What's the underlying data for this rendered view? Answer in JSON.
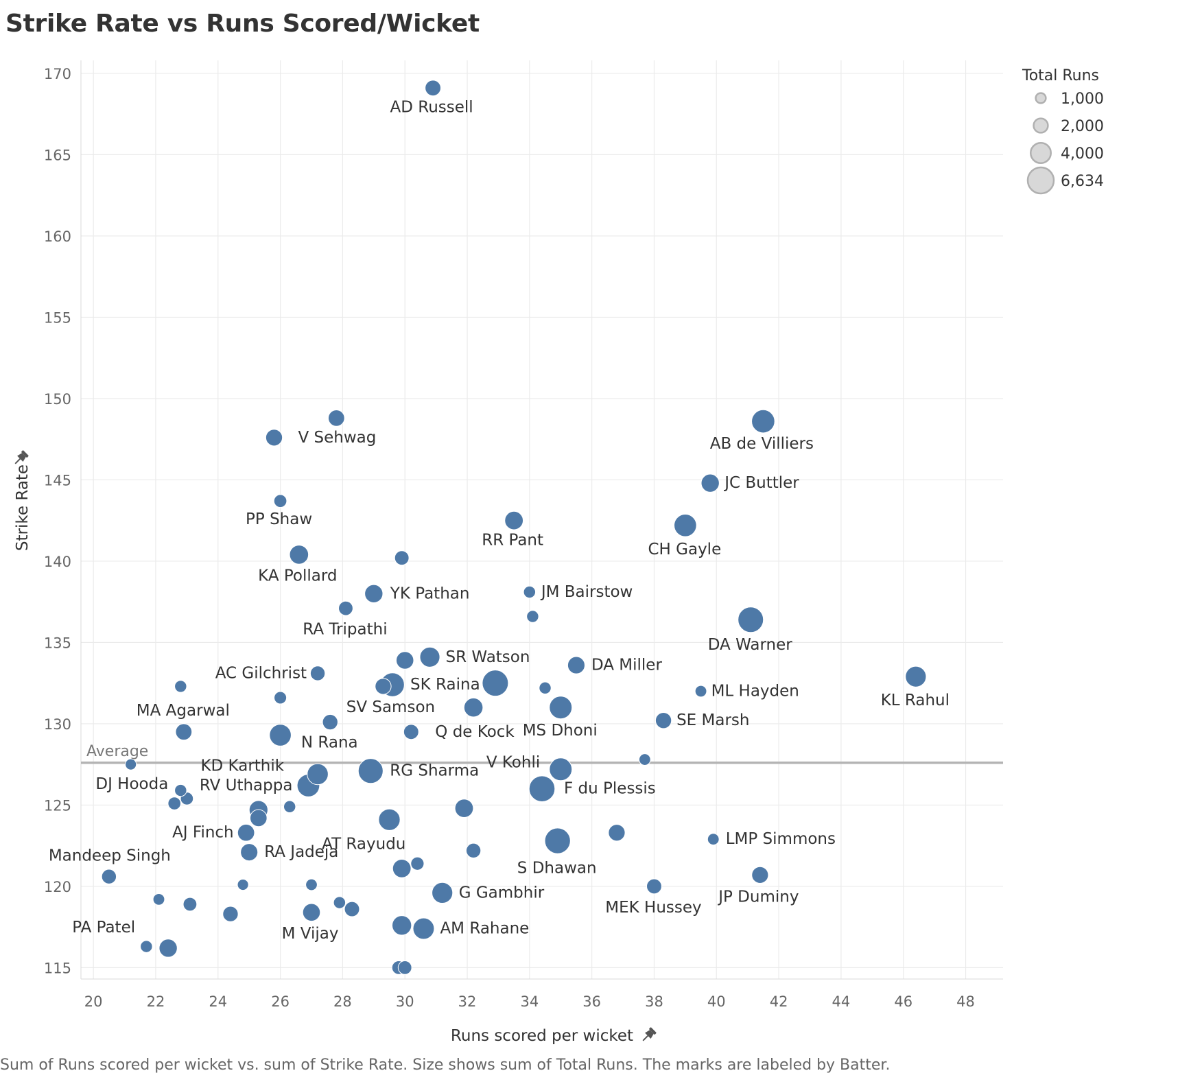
{
  "title": "Strike Rate vs Runs Scored/Wicket",
  "caption": "Sum of Runs scored per wicket vs. sum of Strike Rate.  Size shows sum of Total Runs.  The marks are labeled by Batter.",
  "colors": {
    "point": "#4e79a7",
    "grid": "#ebebeb",
    "reference": "#b4b4b4",
    "legend_fill": "#d8d8d8",
    "legend_stroke": "#b0b0b0"
  },
  "icons": {
    "pin": "pin-icon"
  },
  "chart_data": {
    "type": "scatter",
    "title": "Strike Rate vs Runs Scored/Wicket",
    "xlabel": "Runs scored per wicket",
    "ylabel": "Strike Rate",
    "xlim": [
      19.6,
      49.2
    ],
    "ylim": [
      114.3,
      170.8
    ],
    "x_ticks": [
      20,
      22,
      24,
      26,
      28,
      30,
      32,
      34,
      36,
      38,
      40,
      42,
      44,
      46,
      48
    ],
    "y_ticks": [
      115,
      120,
      125,
      130,
      135,
      140,
      145,
      150,
      155,
      160,
      165,
      170
    ],
    "grid": true,
    "legend_position": "top-right",
    "size_legend": {
      "title": "Total Runs",
      "entries": [
        {
          "label": "1,000",
          "value": 1000
        },
        {
          "label": "2,000",
          "value": 2000
        },
        {
          "label": "4,000",
          "value": 4000
        },
        {
          "label": "6,634",
          "value": 6634
        }
      ]
    },
    "reference_line": {
      "label": "Average",
      "y": 127.6
    },
    "points": [
      {
        "name": "AD Russell",
        "x": 30.9,
        "y": 169.1,
        "size": 2400
      },
      {
        "name": "",
        "x": 27.8,
        "y": 148.8,
        "size": 2600
      },
      {
        "name": "V Sehwag",
        "x": 25.8,
        "y": 147.6,
        "size": 2700
      },
      {
        "name": "AB de Villiers",
        "x": 41.5,
        "y": 148.6,
        "size": 5200
      },
      {
        "name": "JC Buttler",
        "x": 39.8,
        "y": 144.8,
        "size": 3200
      },
      {
        "name": "PP Shaw",
        "x": 26.0,
        "y": 143.7,
        "size": 1600
      },
      {
        "name": "RR Pant",
        "x": 33.5,
        "y": 142.5,
        "size": 3300
      },
      {
        "name": "CH Gayle",
        "x": 39.0,
        "y": 142.2,
        "size": 4900
      },
      {
        "name": "KA Pollard",
        "x": 26.6,
        "y": 140.4,
        "size": 3500
      },
      {
        "name": "",
        "x": 29.9,
        "y": 140.2,
        "size": 2000
      },
      {
        "name": "YK Pathan",
        "x": 29.0,
        "y": 138.0,
        "size": 3200
      },
      {
        "name": "JM Bairstow",
        "x": 34.0,
        "y": 138.1,
        "size": 1400
      },
      {
        "name": "RA Tripathi",
        "x": 28.1,
        "y": 137.1,
        "size": 2000
      },
      {
        "name": "",
        "x": 34.1,
        "y": 136.6,
        "size": 1400
      },
      {
        "name": "DA Warner",
        "x": 41.1,
        "y": 136.4,
        "size": 6300
      },
      {
        "name": "",
        "x": 30.0,
        "y": 133.9,
        "size": 3000
      },
      {
        "name": "SR Watson",
        "x": 30.8,
        "y": 134.1,
        "size": 3900
      },
      {
        "name": "DA Miller",
        "x": 35.5,
        "y": 133.6,
        "size": 2900
      },
      {
        "name": "AC Gilchrist",
        "x": 27.2,
        "y": 133.1,
        "size": 2100
      },
      {
        "name": "KL Rahul",
        "x": 46.4,
        "y": 132.9,
        "size": 4200
      },
      {
        "name": "SK Raina",
        "x": 29.6,
        "y": 132.4,
        "size": 5500
      },
      {
        "name": "",
        "x": 29.3,
        "y": 132.3,
        "size": 2500
      },
      {
        "name": "",
        "x": 32.9,
        "y": 132.5,
        "size": 6634
      },
      {
        "name": "",
        "x": 22.8,
        "y": 132.3,
        "size": 1400
      },
      {
        "name": "",
        "x": 34.5,
        "y": 132.2,
        "size": 1400
      },
      {
        "name": "ML Hayden",
        "x": 39.5,
        "y": 132.0,
        "size": 1300
      },
      {
        "name": "",
        "x": 26.0,
        "y": 131.6,
        "size": 1500
      },
      {
        "name": "SV Samson",
        "x": 32.2,
        "y": 131.0,
        "size": 3500
      },
      {
        "name": "MS Dhoni",
        "x": 35.0,
        "y": 131.0,
        "size": 5000
      },
      {
        "name": "SE Marsh",
        "x": 38.3,
        "y": 130.2,
        "size": 2500
      },
      {
        "name": "MA Agarwal",
        "x": 22.9,
        "y": 129.5,
        "size": 2600
      },
      {
        "name": "N Rana",
        "x": 27.6,
        "y": 130.1,
        "size": 2300
      },
      {
        "name": "",
        "x": 26.0,
        "y": 129.3,
        "size": 4600
      },
      {
        "name": "Q de Kock",
        "x": 30.2,
        "y": 129.5,
        "size": 2200
      },
      {
        "name": "",
        "x": 37.7,
        "y": 127.8,
        "size": 1300
      },
      {
        "name": "",
        "x": 21.2,
        "y": 127.5,
        "size": 1200
      },
      {
        "name": "V Kohli",
        "x": 35.0,
        "y": 127.2,
        "size": 5000
      },
      {
        "name": "RG Sharma",
        "x": 28.9,
        "y": 127.1,
        "size": 6000
      },
      {
        "name": "KD Karthik",
        "x": 27.2,
        "y": 126.9,
        "size": 4300
      },
      {
        "name": "RV Uthappa",
        "x": 26.9,
        "y": 126.2,
        "size": 4950
      },
      {
        "name": "DJ Hooda",
        "x": 22.8,
        "y": 125.9,
        "size": 1400
      },
      {
        "name": "F du Plessis",
        "x": 34.4,
        "y": 126.0,
        "size": 6500
      },
      {
        "name": "",
        "x": 23.0,
        "y": 125.4,
        "size": 1600
      },
      {
        "name": "",
        "x": 22.6,
        "y": 125.1,
        "size": 1600
      },
      {
        "name": "",
        "x": 25.3,
        "y": 124.7,
        "size": 3400
      },
      {
        "name": "",
        "x": 26.3,
        "y": 124.9,
        "size": 1400
      },
      {
        "name": "",
        "x": 31.9,
        "y": 124.8,
        "size": 3300
      },
      {
        "name": "",
        "x": 25.3,
        "y": 124.2,
        "size": 2800
      },
      {
        "name": "",
        "x": 29.5,
        "y": 124.1,
        "size": 4500
      },
      {
        "name": "AJ Finch",
        "x": 24.9,
        "y": 123.3,
        "size": 2800
      },
      {
        "name": "",
        "x": 36.8,
        "y": 123.3,
        "size": 2700
      },
      {
        "name": "S Dhawan",
        "x": 34.9,
        "y": 122.8,
        "size": 6400
      },
      {
        "name": "LMP Simmons",
        "x": 39.9,
        "y": 122.9,
        "size": 1300
      },
      {
        "name": "RA Jadeja",
        "x": 25.0,
        "y": 122.1,
        "size": 2900
      },
      {
        "name": "",
        "x": 32.2,
        "y": 122.2,
        "size": 2100
      },
      {
        "name": "AT Rayudu",
        "x": 30.4,
        "y": 121.4,
        "size": 1700
      },
      {
        "name": "",
        "x": 29.9,
        "y": 121.1,
        "size": 3300
      },
      {
        "name": "JP Duminy",
        "x": 41.4,
        "y": 120.7,
        "size": 2700
      },
      {
        "name": "Mandeep Singh",
        "x": 20.5,
        "y": 120.6,
        "size": 2100
      },
      {
        "name": "",
        "x": 24.8,
        "y": 120.1,
        "size": 1200
      },
      {
        "name": "",
        "x": 27.0,
        "y": 120.1,
        "size": 1300
      },
      {
        "name": "MEK Hussey",
        "x": 38.0,
        "y": 120.0,
        "size": 2200
      },
      {
        "name": "G Gambhir",
        "x": 31.2,
        "y": 119.6,
        "size": 4200
      },
      {
        "name": "",
        "x": 22.1,
        "y": 119.2,
        "size": 1300
      },
      {
        "name": "",
        "x": 23.1,
        "y": 118.9,
        "size": 1800
      },
      {
        "name": "",
        "x": 27.9,
        "y": 119.0,
        "size": 1400
      },
      {
        "name": "",
        "x": 28.3,
        "y": 118.6,
        "size": 2200
      },
      {
        "name": "",
        "x": 24.4,
        "y": 118.3,
        "size": 2300
      },
      {
        "name": "M Vijay",
        "x": 27.0,
        "y": 118.4,
        "size": 3000
      },
      {
        "name": "",
        "x": 29.9,
        "y": 117.6,
        "size": 3700
      },
      {
        "name": "AM Rahane",
        "x": 30.6,
        "y": 117.4,
        "size": 4400
      },
      {
        "name": "PA Patel",
        "x": 22.4,
        "y": 116.2,
        "size": 3200
      },
      {
        "name": "",
        "x": 21.7,
        "y": 116.3,
        "size": 1400
      },
      {
        "name": "",
        "x": 29.8,
        "y": 115.0,
        "size": 1800
      },
      {
        "name": "",
        "x": 30.0,
        "y": 115.0,
        "size": 1800
      }
    ]
  }
}
